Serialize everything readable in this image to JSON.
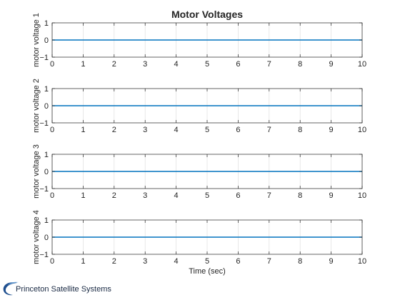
{
  "figure_title": "Motor Voltages",
  "footer": {
    "company_name": "Princeton Satellite Systems"
  },
  "colors": {
    "series": "#0072bd",
    "grid": "#e3e3e3",
    "axis": "#262626"
  },
  "chart_data": [
    {
      "type": "line",
      "title": "Motor Voltages",
      "xlabel": "",
      "ylabel": "motor voltage 1",
      "xlim": [
        0,
        10
      ],
      "ylim": [
        -1,
        1
      ],
      "xticks": [
        0,
        1,
        2,
        3,
        4,
        5,
        6,
        7,
        8,
        9,
        10
      ],
      "yticks": [
        -1,
        0,
        1
      ],
      "grid": "x-only",
      "series": [
        {
          "x": [
            0,
            10
          ],
          "y": [
            0,
            0
          ]
        }
      ]
    },
    {
      "type": "line",
      "xlabel": "",
      "ylabel": "motor voltage 2",
      "xlim": [
        0,
        10
      ],
      "ylim": [
        -1,
        1
      ],
      "xticks": [
        0,
        1,
        2,
        3,
        4,
        5,
        6,
        7,
        8,
        9,
        10
      ],
      "yticks": [
        -1,
        0,
        1
      ],
      "grid": "x-only",
      "series": [
        {
          "x": [
            0,
            10
          ],
          "y": [
            0,
            0
          ]
        }
      ]
    },
    {
      "type": "line",
      "xlabel": "",
      "ylabel": "motor voltage 3",
      "xlim": [
        0,
        10
      ],
      "ylim": [
        -1,
        1
      ],
      "xticks": [
        0,
        1,
        2,
        3,
        4,
        5,
        6,
        7,
        8,
        9,
        10
      ],
      "yticks": [
        -1,
        0,
        1
      ],
      "grid": "x-only",
      "series": [
        {
          "x": [
            0,
            10
          ],
          "y": [
            0,
            0
          ]
        }
      ]
    },
    {
      "type": "line",
      "xlabel": "Time (sec)",
      "ylabel": "motor voltage 4",
      "xlim": [
        0,
        10
      ],
      "ylim": [
        -1,
        1
      ],
      "xticks": [
        0,
        1,
        2,
        3,
        4,
        5,
        6,
        7,
        8,
        9,
        10
      ],
      "yticks": [
        -1,
        0,
        1
      ],
      "grid": "x-only",
      "series": [
        {
          "x": [
            0,
            10
          ],
          "y": [
            0,
            0
          ]
        }
      ]
    }
  ]
}
